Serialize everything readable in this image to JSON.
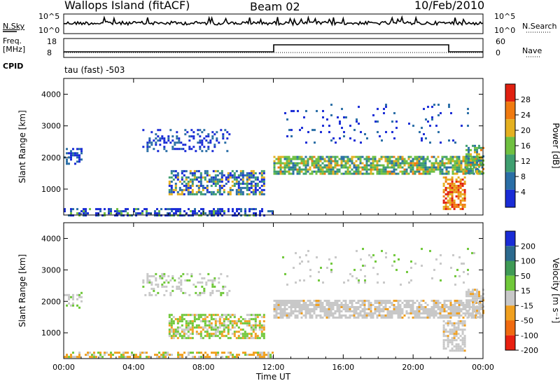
{
  "header": {
    "station": "Wallops Island (fitACF)",
    "beam": "Beam 02",
    "date": "10/Feb/2010"
  },
  "strip_labels": {
    "nsky": "N.Sky",
    "nsky_top": "10^5",
    "nsky_bottom": "10^0",
    "nsearch": "N.Search",
    "nsearch_top": "10^5",
    "nsearch_bottom": "10^0",
    "freq_line1": "Freq.",
    "freq_line2": "[MHz]",
    "freq_top": "18",
    "freq_bottom": "8",
    "nave": "Nave",
    "nave_top": "60",
    "nave_bottom": "0",
    "cpid": "CPID",
    "cpid_value": "tau (fast) -503"
  },
  "chart_data": [
    {
      "type": "heatmap",
      "panel": "power",
      "ylabel": "Slant Range [km]",
      "xlabel": "",
      "ylim": [
        180,
        4500
      ],
      "yticks": [
        "1000",
        "2000",
        "3000",
        "4000"
      ],
      "xlim": [
        0,
        24
      ],
      "xticks": [
        "00:00",
        "04:00",
        "08:00",
        "12:00",
        "16:00",
        "20:00",
        "00:00"
      ],
      "colorbar": {
        "label": "Power [dB]",
        "ticks": [
          "4",
          "8",
          "12",
          "16",
          "20",
          "24",
          "28"
        ],
        "range": [
          0,
          30
        ],
        "colors": [
          "#1a2cd6",
          "#2a6ea6",
          "#3f9f70",
          "#6fc040",
          "#e4b020",
          "#f07a10",
          "#e02010"
        ]
      },
      "features": [
        {
          "name": "main echo band",
          "x": [
            12.0,
            24.0
          ],
          "y": [
            1500,
            2000
          ],
          "values": "8-20 dB"
        },
        {
          "name": "morning echo",
          "x": [
            6.0,
            11.5
          ],
          "y": [
            800,
            1600
          ],
          "values": "8-18 dB"
        },
        {
          "name": "dusk echo",
          "x": [
            21.7,
            23.0
          ],
          "y": [
            400,
            1400
          ],
          "values": "20-28 dB"
        },
        {
          "name": "ground scatter near range",
          "x": [
            0.0,
            12.0
          ],
          "y": [
            180,
            400
          ],
          "values": "4-12 dB"
        }
      ]
    },
    {
      "type": "heatmap",
      "panel": "velocity",
      "ylabel": "Slant Range [km]",
      "xlabel": "Time UT",
      "ylim": [
        180,
        4500
      ],
      "yticks": [
        "1000",
        "2000",
        "3000",
        "4000"
      ],
      "xlim": [
        0,
        24
      ],
      "xticks": [
        "00:00",
        "04:00",
        "08:00",
        "12:00",
        "16:00",
        "20:00",
        "00:00"
      ],
      "colorbar": {
        "label": "Velocity [m s⁻¹]",
        "ticks": [
          "200",
          "100",
          "50",
          "15",
          "-15",
          "-50",
          "-100",
          "-200"
        ],
        "colors": [
          "#1a2cd6",
          "#2c6a8e",
          "#3f9a55",
          "#70c83a",
          "#c8c8c8",
          "#f0a020",
          "#f06a10",
          "#e82010"
        ]
      },
      "features": [
        {
          "name": "main echo band",
          "x": [
            12.0,
            24.0
          ],
          "y": [
            1500,
            2000
          ],
          "values": "-15 to 15 m/s (ground scatter)"
        },
        {
          "name": "morning echo",
          "x": [
            6.0,
            11.5
          ],
          "y": [
            800,
            1600
          ],
          "values": "15-50 m/s and -15 to -50 m/s"
        },
        {
          "name": "near-range band",
          "x": [
            0.0,
            12.0
          ],
          "y": [
            180,
            400
          ],
          "values": "-15 to -50 m/s"
        }
      ]
    }
  ]
}
